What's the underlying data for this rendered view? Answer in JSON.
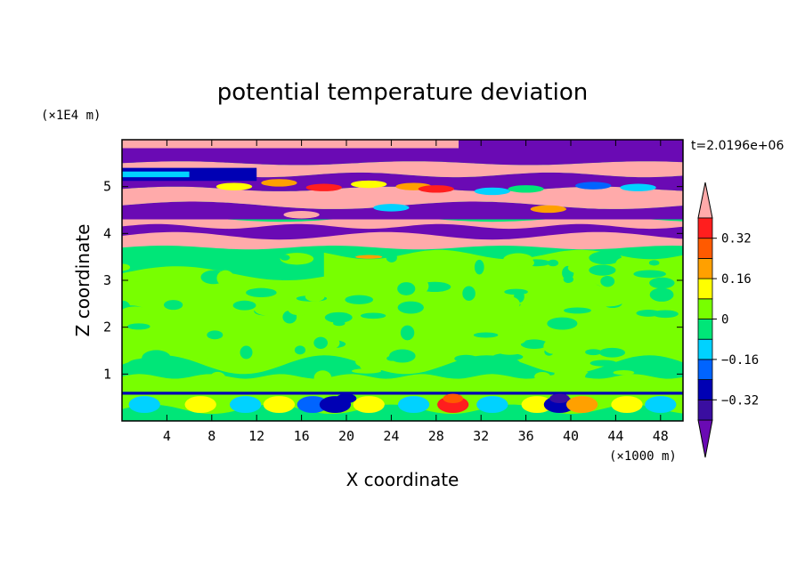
{
  "chart_data": {
    "type": "heatmap",
    "title": "potential temperature deviation",
    "xlabel": "X coordinate",
    "ylabel": "Z coordinate",
    "x_unit": "(×1000 m)",
    "y_unit": "(×1E4 m)",
    "time_label": "t=2.0196e+06",
    "xlim": [
      0,
      50
    ],
    "ylim": [
      0,
      6
    ],
    "x_ticks": [
      "4",
      "8",
      "12",
      "16",
      "20",
      "24",
      "28",
      "32",
      "36",
      "40",
      "44",
      "48"
    ],
    "y_ticks": [
      "1",
      "2",
      "3",
      "4",
      "5"
    ],
    "x_tick_values": [
      4,
      8,
      12,
      16,
      20,
      24,
      28,
      32,
      36,
      40,
      44,
      48
    ],
    "y_tick_values": [
      1,
      2,
      3,
      4,
      5
    ],
    "colorbar": {
      "labels": [
        "0.32",
        "0.16",
        "0",
        "−0.16",
        "−0.32"
      ],
      "label_values": [
        0.32,
        0.16,
        0,
        -0.16,
        -0.32
      ],
      "levels": [
        -0.4,
        -0.32,
        -0.24,
        -0.16,
        -0.08,
        0,
        0.08,
        0.16,
        0.24,
        0.32,
        0.4
      ],
      "colors": [
        "#6a0ab4",
        "#3a0ea0",
        "#0000b4",
        "#0064ff",
        "#00d2ff",
        "#00e678",
        "#78ff00",
        "#ffff00",
        "#ffa000",
        "#ff5a00",
        "#ff1e1e",
        "#ffaaaa"
      ],
      "extend": "both"
    },
    "layers": [
      {
        "z_bottom": 5.8,
        "z_top": 6.0,
        "dominant": "over (>0.4)",
        "color": "#ffaaaa"
      },
      {
        "z_bottom": 5.5,
        "z_top": 5.8,
        "dominant": "under (<-0.4)",
        "color": "#6a0ab4"
      },
      {
        "z_bottom": 5.25,
        "z_top": 5.5,
        "dominant": "over (>0.4)",
        "color": "#ffaaaa"
      },
      {
        "z_bottom": 4.95,
        "z_top": 5.25,
        "dominant": "mixed extremes",
        "color": "#6a0ab4"
      },
      {
        "z_bottom": 4.6,
        "z_top": 4.95,
        "dominant": "over (>0.4)",
        "color": "#ffaaaa"
      },
      {
        "z_bottom": 4.35,
        "z_top": 4.6,
        "dominant": "under (<-0.4)",
        "color": "#6a0ab4"
      },
      {
        "z_bottom": 3.7,
        "z_top": 4.35,
        "dominant": "over / under bands",
        "color": "#ffaaaa"
      },
      {
        "z_bottom": 0.6,
        "z_top": 3.7,
        "dominant": "near zero (-0.08 to 0.08)",
        "color": "#00e678"
      },
      {
        "z_bottom": 0.0,
        "z_top": 0.6,
        "dominant": "mixed small-scale",
        "color": "#78ff00"
      }
    ]
  }
}
